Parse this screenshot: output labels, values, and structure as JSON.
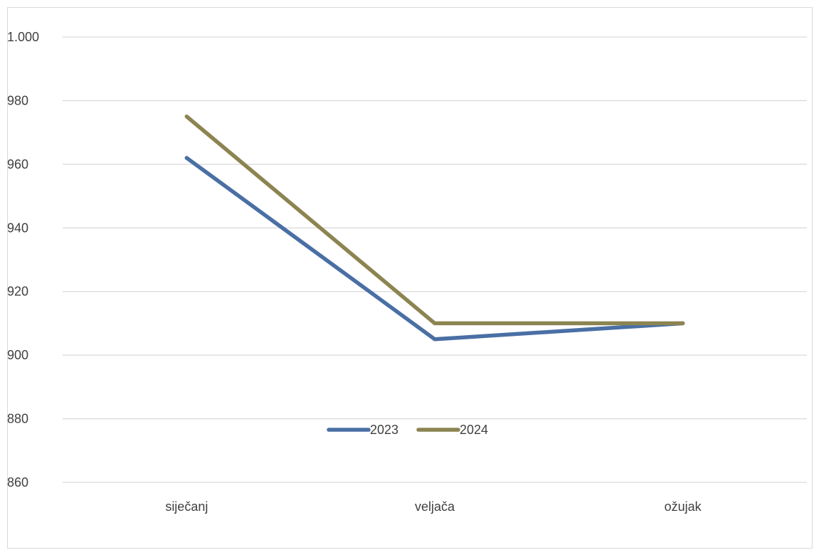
{
  "chart_data": {
    "type": "line",
    "categories": [
      "siječanj",
      "veljača",
      "ožujak"
    ],
    "series": [
      {
        "name": "2023",
        "values": [
          962,
          905,
          910
        ],
        "color": "#4a6fa5"
      },
      {
        "name": "2024",
        "values": [
          975,
          910,
          910
        ],
        "color": "#8c8451"
      }
    ],
    "ylim": [
      860,
      1000
    ],
    "yticks": [
      860,
      880,
      900,
      920,
      940,
      960,
      980,
      1000
    ],
    "ytick_labels": [
      "860",
      "880",
      "900",
      "920",
      "940",
      "960",
      "980",
      "1.000"
    ],
    "grid": true,
    "legend_position": "inside-bottom-center",
    "title": "",
    "xlabel": "",
    "ylabel": ""
  }
}
